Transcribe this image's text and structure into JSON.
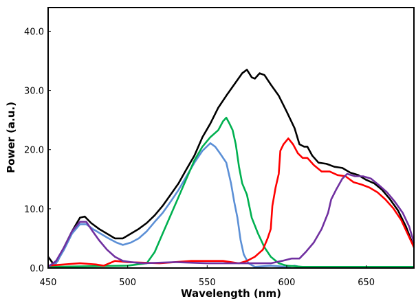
{
  "chart_data": {
    "type": "line",
    "title": "",
    "xlabel": "Wavelength (nm)",
    "ylabel": "Power (a.u.)",
    "xlim": [
      450,
      680
    ],
    "ylim": [
      0,
      44
    ],
    "xticks": [
      "450",
      "500",
      "550",
      "600",
      "650"
    ],
    "xtick_values": [
      450,
      500,
      550,
      600,
      650
    ],
    "yticks": [
      "0.0",
      "10.0",
      "20.0",
      "30.0",
      "40.0"
    ],
    "ytick_values": [
      0,
      10,
      20,
      30,
      40
    ],
    "grid": false,
    "legend": "none",
    "series": [
      {
        "color": "#000000",
        "points": [
          [
            450,
            1.9
          ],
          [
            453,
            0.8
          ],
          [
            456,
            1.2
          ],
          [
            460,
            3.5
          ],
          [
            465,
            6.2
          ],
          [
            470,
            8.5
          ],
          [
            473,
            8.7
          ],
          [
            477,
            7.6
          ],
          [
            482,
            6.6
          ],
          [
            487,
            5.8
          ],
          [
            492,
            5.0
          ],
          [
            497,
            5.0
          ],
          [
            502,
            5.8
          ],
          [
            507,
            6.6
          ],
          [
            512,
            7.6
          ],
          [
            517,
            8.9
          ],
          [
            522,
            10.5
          ],
          [
            527,
            12.4
          ],
          [
            532,
            14.3
          ],
          [
            537,
            16.7
          ],
          [
            542,
            19.0
          ],
          [
            547,
            22.1
          ],
          [
            552,
            24.4
          ],
          [
            557,
            27.1
          ],
          [
            562,
            29.1
          ],
          [
            567,
            31.0
          ],
          [
            572,
            32.9
          ],
          [
            575,
            33.5
          ],
          [
            578,
            32.2
          ],
          [
            580,
            32.0
          ],
          [
            583,
            32.9
          ],
          [
            586,
            32.6
          ],
          [
            590,
            31.0
          ],
          [
            595,
            29.1
          ],
          [
            600,
            26.4
          ],
          [
            605,
            23.6
          ],
          [
            608,
            20.9
          ],
          [
            611,
            20.5
          ],
          [
            613,
            20.5
          ],
          [
            616,
            19.0
          ],
          [
            620,
            17.8
          ],
          [
            625,
            17.6
          ],
          [
            630,
            17.1
          ],
          [
            635,
            16.9
          ],
          [
            640,
            16.1
          ],
          [
            645,
            15.7
          ],
          [
            650,
            14.9
          ],
          [
            655,
            14.3
          ],
          [
            660,
            13.2
          ],
          [
            665,
            11.6
          ],
          [
            670,
            9.7
          ],
          [
            675,
            7.0
          ],
          [
            680,
            3.5
          ]
        ]
      },
      {
        "color": "#5b8fd6",
        "points": [
          [
            450,
            0.2
          ],
          [
            455,
            0.8
          ],
          [
            460,
            3.1
          ],
          [
            465,
            5.8
          ],
          [
            470,
            7.4
          ],
          [
            474,
            7.4
          ],
          [
            478,
            6.6
          ],
          [
            483,
            5.8
          ],
          [
            488,
            5.0
          ],
          [
            493,
            4.3
          ],
          [
            497,
            3.9
          ],
          [
            502,
            4.3
          ],
          [
            507,
            5.0
          ],
          [
            512,
            6.2
          ],
          [
            517,
            7.8
          ],
          [
            522,
            9.3
          ],
          [
            527,
            11.2
          ],
          [
            532,
            13.2
          ],
          [
            537,
            15.5
          ],
          [
            542,
            17.8
          ],
          [
            547,
            19.8
          ],
          [
            552,
            21.1
          ],
          [
            555,
            20.5
          ],
          [
            558,
            19.4
          ],
          [
            562,
            17.8
          ],
          [
            565,
            14.3
          ],
          [
            567,
            11.2
          ],
          [
            569,
            8.5
          ],
          [
            571,
            4.7
          ],
          [
            573,
            2.3
          ],
          [
            576,
            0.8
          ],
          [
            580,
            0.2
          ],
          [
            590,
            0.4
          ],
          [
            600,
            0.2
          ],
          [
            605,
            0.4
          ],
          [
            610,
            0.1
          ],
          [
            680,
            0.2
          ]
        ]
      },
      {
        "color": "#00b050",
        "points": [
          [
            450,
            0.2
          ],
          [
            500,
            0.4
          ],
          [
            512,
            0.8
          ],
          [
            517,
            2.7
          ],
          [
            522,
            5.8
          ],
          [
            527,
            8.9
          ],
          [
            532,
            12.0
          ],
          [
            537,
            15.1
          ],
          [
            542,
            18.2
          ],
          [
            547,
            20.5
          ],
          [
            552,
            22.1
          ],
          [
            557,
            23.3
          ],
          [
            560,
            24.8
          ],
          [
            562,
            25.4
          ],
          [
            564,
            24.4
          ],
          [
            566,
            23.3
          ],
          [
            568,
            20.9
          ],
          [
            570,
            17.1
          ],
          [
            572,
            14.3
          ],
          [
            575,
            12.4
          ],
          [
            578,
            8.5
          ],
          [
            582,
            5.8
          ],
          [
            586,
            3.5
          ],
          [
            590,
            1.9
          ],
          [
            595,
            0.8
          ],
          [
            600,
            0.4
          ],
          [
            610,
            0.2
          ],
          [
            680,
            0.2
          ]
        ]
      },
      {
        "color": "#ff0000",
        "points": [
          [
            450,
            0.4
          ],
          [
            470,
            0.8
          ],
          [
            480,
            0.6
          ],
          [
            485,
            0.4
          ],
          [
            492,
            1.2
          ],
          [
            500,
            1.0
          ],
          [
            520,
            0.8
          ],
          [
            540,
            1.2
          ],
          [
            550,
            1.2
          ],
          [
            560,
            1.2
          ],
          [
            570,
            0.8
          ],
          [
            575,
            1.2
          ],
          [
            580,
            1.9
          ],
          [
            585,
            3.1
          ],
          [
            588,
            5.0
          ],
          [
            590,
            6.6
          ],
          [
            591,
            10.5
          ],
          [
            593,
            13.6
          ],
          [
            595,
            15.9
          ],
          [
            596,
            19.8
          ],
          [
            598,
            20.9
          ],
          [
            601,
            21.9
          ],
          [
            604,
            20.9
          ],
          [
            607,
            19.4
          ],
          [
            610,
            18.6
          ],
          [
            613,
            18.6
          ],
          [
            617,
            17.4
          ],
          [
            622,
            16.3
          ],
          [
            627,
            16.3
          ],
          [
            632,
            15.7
          ],
          [
            637,
            15.5
          ],
          [
            642,
            14.5
          ],
          [
            647,
            14.1
          ],
          [
            652,
            13.6
          ],
          [
            657,
            12.8
          ],
          [
            662,
            11.6
          ],
          [
            667,
            10.1
          ],
          [
            672,
            8.1
          ],
          [
            676,
            5.8
          ],
          [
            680,
            3.5
          ]
        ]
      },
      {
        "color": "#7030a0",
        "points": [
          [
            450,
            0.2
          ],
          [
            455,
            1.2
          ],
          [
            460,
            3.5
          ],
          [
            465,
            6.2
          ],
          [
            470,
            7.8
          ],
          [
            474,
            7.8
          ],
          [
            478,
            6.2
          ],
          [
            482,
            4.7
          ],
          [
            487,
            3.1
          ],
          [
            492,
            1.9
          ],
          [
            497,
            1.2
          ],
          [
            502,
            1.0
          ],
          [
            510,
            0.8
          ],
          [
            530,
            1.0
          ],
          [
            550,
            0.8
          ],
          [
            570,
            0.8
          ],
          [
            590,
            0.8
          ],
          [
            597,
            1.2
          ],
          [
            603,
            1.6
          ],
          [
            608,
            1.6
          ],
          [
            612,
            2.7
          ],
          [
            617,
            4.3
          ],
          [
            622,
            6.6
          ],
          [
            626,
            9.3
          ],
          [
            628,
            11.6
          ],
          [
            631,
            13.2
          ],
          [
            635,
            15.1
          ],
          [
            638,
            15.9
          ],
          [
            643,
            15.5
          ],
          [
            648,
            15.5
          ],
          [
            653,
            15.1
          ],
          [
            658,
            14.0
          ],
          [
            663,
            12.8
          ],
          [
            668,
            11.2
          ],
          [
            673,
            9.3
          ],
          [
            677,
            7.0
          ],
          [
            680,
            4.3
          ]
        ]
      }
    ]
  }
}
